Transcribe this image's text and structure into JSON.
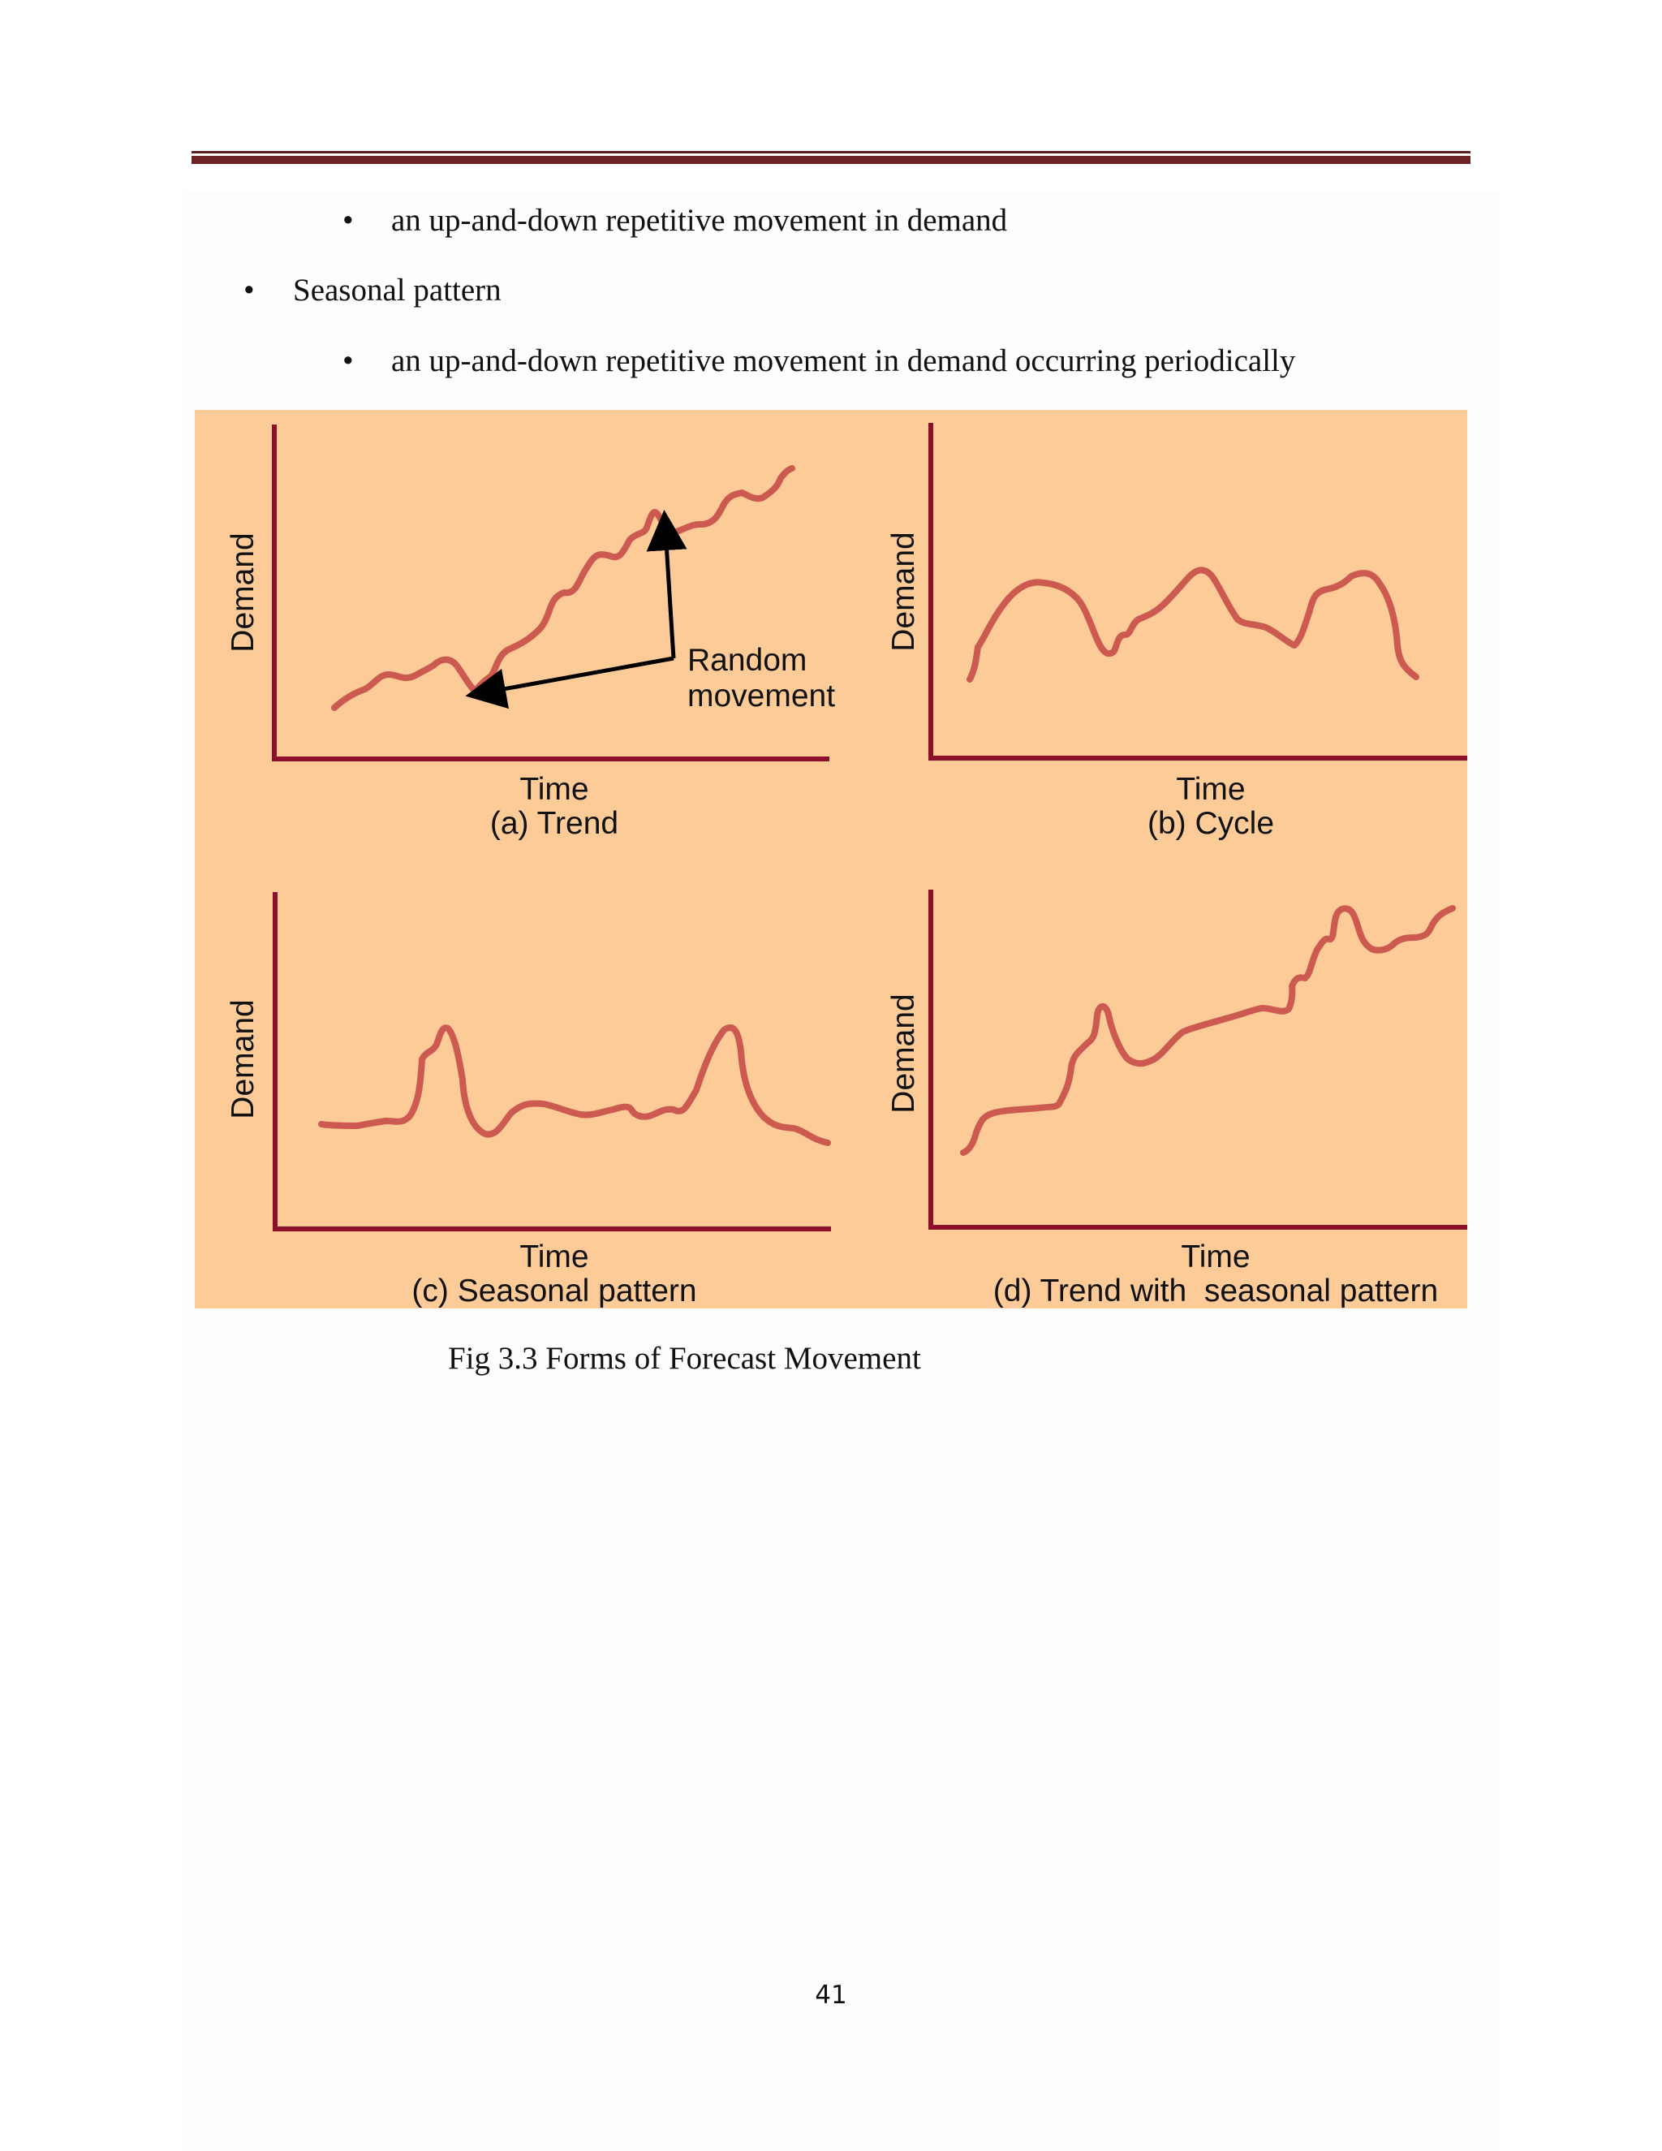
{
  "document": {
    "bullets": [
      {
        "level": 2,
        "marker": "•",
        "text": "an up-and-down repetitive movement in demand"
      },
      {
        "level": 1,
        "marker": "•",
        "text": "Seasonal pattern"
      },
      {
        "level": 2,
        "marker": "•",
        "text": "an up-and-down repetitive movement in demand occurring periodically"
      }
    ],
    "caption": "Fig 3.3 Forms of Forecast Movement",
    "page_number": "41"
  },
  "figure": {
    "background": "#fccb98",
    "axis_color": "#8c0f2c",
    "curve_color": "#cc5a50",
    "panels": [
      {
        "y_label": "Demand",
        "x_label": "Time",
        "subtitle": "(a) Trend",
        "annotation_line1": "Random",
        "annotation_line2": "movement"
      },
      {
        "y_label": "Demand",
        "x_label": "Time",
        "subtitle": "(b) Cycle"
      },
      {
        "y_label": "Demand",
        "x_label": "Time",
        "subtitle": "(c) Seasonal pattern"
      },
      {
        "y_label": "Demand",
        "x_label": "Time",
        "subtitle": "(d) Trend with  seasonal pattern"
      }
    ]
  }
}
